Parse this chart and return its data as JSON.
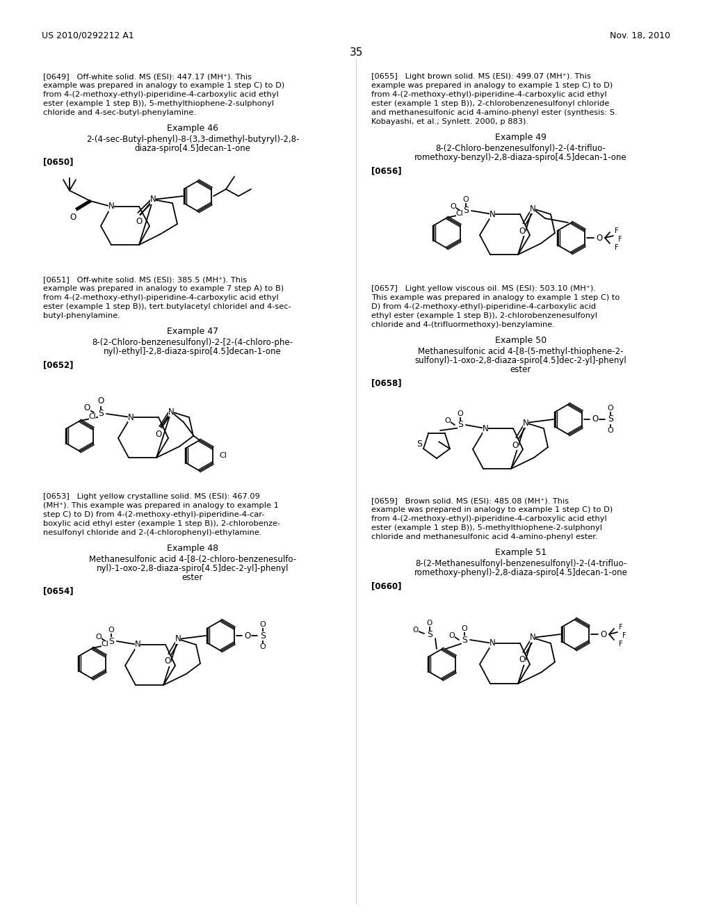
{
  "bg_color": "#ffffff",
  "header_left": "US 2010/0292212 A1",
  "header_right": "Nov. 18, 2010",
  "page_number": "35",
  "left_column": {
    "para0649": "[0649]   Off-white solid. MS (ESI): 447.17 (MH⁺). This\nexample was prepared in analogy to example 1 step C) to D)\nfrom 4-(2-methoxy-ethyl)-piperidine-4-carboxylic acid ethyl\nester (example 1 step B)), 5-methylthiophene-2-sulphonyl\nchloride and 4-sec-butyl-phenylamine.",
    "ex46_title": "Example 46",
    "ex46_name": "2-(4-sec-Butyl-phenyl)-8-(3,3-dimethyl-butyryl)-2,8-\ndiaza-spiro[4.5]decan-1-one",
    "label0650": "[0650]",
    "para0651": "[0651]   Off-white solid. MS (ESI): 385.5 (MH⁺). This\nexample was prepared in analogy to example 7 step A) to B)\nfrom 4-(2-methoxy-ethyl)-piperidine-4-carboxylic acid ethyl\nester (example 1 step B)), tert.butylacetyl chloridel and 4-sec-\nbutyl-phenylamine.",
    "ex47_title": "Example 47",
    "ex47_name": "8-(2-Chloro-benzenesulfonyl)-2-[2-(4-chloro-phe-\nnyl)-ethyl]-2,8-diaza-spiro[4.5]decan-1-one",
    "label0652": "[0652]",
    "para0653": "[0653]   Light yellow crystalline solid. MS (ESI): 467.09\n(MH⁺). This example was prepared in analogy to example 1\nstep C) to D) from 4-(2-methoxy-ethyl)-piperidine-4-car-\nboxylic acid ethyl ester (example 1 step B)), 2-chlorobenze-\nnesulfonyl chloride and 2-(4-chlorophenyl)-ethylamine.",
    "ex48_title": "Example 48",
    "ex48_name": "Methanesulfonic acid 4-[8-(2-chloro-benzenesulfo-\nnyl)-1-oxo-2,8-diaza-spiro[4.5]dec-2-yl]-phenyl\nester",
    "label0654": "[0654]"
  },
  "right_column": {
    "para0655": "[0655]   Light brown solid. MS (ESI): 499.07 (MH⁺). This\nexample was prepared in analogy to example 1 step C) to D)\nfrom 4-(2-methoxy-ethyl)-piperidine-4-carboxylic acid ethyl\nester (example 1 step B)), 2-chlorobenzenesulfonyl chloride\nand methanesulfonic acid 4-amino-phenyl ester (synthesis: S.\nKobayashi, et al.; Synlett. 2000, p 883).",
    "ex49_title": "Example 49",
    "ex49_name": "8-(2-Chloro-benzenesulfonyl)-2-(4-trifluo-\nromethoxy-benzyl)-2,8-diaza-spiro[4.5]decan-1-one",
    "label0656": "[0656]",
    "para0657": "[0657]   Light yellow viscous oil. MS (ESI): 503.10 (MH⁺).\nThis example was prepared in analogy to example 1 step C) to\nD) from 4-(2-methoxy-ethyl)-piperidine-4-carboxylic acid\nethyl ester (example 1 step B)), 2-chlorobenzenesulfonyl\nchloride and 4-(trifluormethoxy)-benzylamine.",
    "ex50_title": "Example 50",
    "ex50_name": "Methanesulfonic acid 4-[8-(5-methyl-thiophene-2-\nsulfonyl)-1-oxo-2,8-diaza-spiro[4.5]dec-2-yl]-phenyl\nester",
    "label0658": "[0658]",
    "para0659": "[0659]   Brown solid. MS (ESI): 485.08 (MH⁺). This\nexample was prepared in analogy to example 1 step C) to D)\nfrom 4-(2-methoxy-ethyl)-piperidine-4-carboxylic acid ethyl\nester (example 1 step B)), 5-methylthiophene-2-sulphonyl\nchloride and methanesulfonic acid 4-amino-phenyl ester.",
    "ex51_title": "Example 51",
    "ex51_name": "8-(2-Methanesulfonyl-benzenesulfonyl)-2-(4-trifluo-\nromethoxy-phenyl)-2,8-diaza-spiro[4.5]decan-1-one",
    "label0660": "[0660]"
  }
}
